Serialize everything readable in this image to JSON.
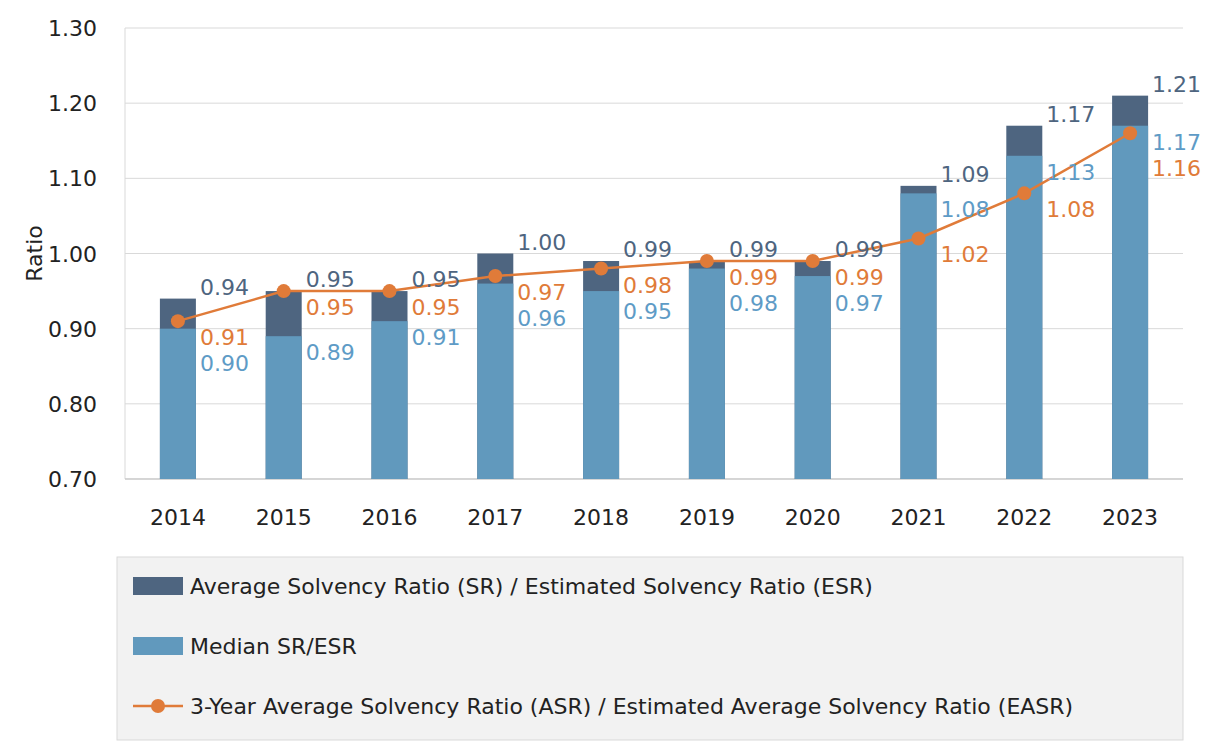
{
  "chart_data": {
    "type": "bar",
    "y_label": "Ratio",
    "categories": [
      "2014",
      "2015",
      "2016",
      "2017",
      "2018",
      "2019",
      "2020",
      "2021",
      "2022",
      "2023"
    ],
    "series": [
      {
        "name": "Average Solvency Ratio (SR) / Estimated Solvency Ratio (ESR)",
        "type": "bar",
        "color": "#4e6580",
        "values": [
          0.94,
          0.95,
          0.95,
          1.0,
          0.99,
          0.99,
          0.99,
          1.09,
          1.17,
          1.21
        ],
        "value_labels": [
          "0.94",
          "0.95",
          "0.95",
          "1.00",
          "0.99",
          "0.99",
          "0.99",
          "1.09",
          "1.17",
          "1.21"
        ]
      },
      {
        "name": "Median SR/ESR",
        "type": "bar",
        "color": "#6199bd",
        "values": [
          0.9,
          0.89,
          0.91,
          0.96,
          0.95,
          0.98,
          0.97,
          1.08,
          1.13,
          1.17
        ],
        "value_labels": [
          "0.90",
          "0.89",
          "0.91",
          "0.96",
          "0.95",
          "0.98",
          "0.97",
          "1.08",
          "1.13",
          "1.17"
        ]
      },
      {
        "name": "3-Year Average Solvency Ratio (ASR) / Estimated Average Solvency Ratio (EASR)",
        "type": "line",
        "color": "#e07b39",
        "marker": "circle",
        "values": [
          0.91,
          0.95,
          0.95,
          0.97,
          0.98,
          0.99,
          0.99,
          1.02,
          1.08,
          1.16
        ],
        "value_labels": [
          "0.91",
          "0.95",
          "0.95",
          "0.97",
          "0.98",
          "0.99",
          "0.99",
          "1.02",
          "1.08",
          "1.16"
        ]
      }
    ],
    "ylim": [
      0.7,
      1.3
    ],
    "yticks": [
      {
        "value": 0.7,
        "label": "0.70"
      },
      {
        "value": 0.8,
        "label": "0.80"
      },
      {
        "value": 0.9,
        "label": "0.90"
      },
      {
        "value": 1.0,
        "label": "1.00"
      },
      {
        "value": 1.1,
        "label": "1.10"
      },
      {
        "value": 1.2,
        "label": "1.20"
      },
      {
        "value": 1.3,
        "label": "1.30"
      }
    ],
    "grid": true,
    "legend": "bottom",
    "stacked": false,
    "data_labels": true
  }
}
